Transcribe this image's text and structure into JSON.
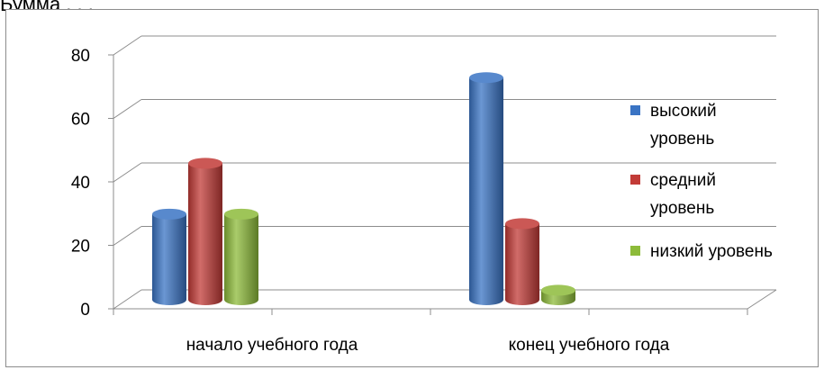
{
  "fragment_text": "Бумма . . .",
  "chart_data": {
    "type": "bar",
    "categories": [
      "начало учебного года",
      "конец учебного года"
    ],
    "series": [
      {
        "name": "высокий уровень",
        "values": [
          27,
          70
        ],
        "color": "#3a74c4"
      },
      {
        "name": "средний уровень",
        "values": [
          43,
          24
        ],
        "color": "#c23b37"
      },
      {
        "name": "низкий уровень",
        "values": [
          27,
          3
        ],
        "color": "#8dbb3a"
      }
    ],
    "y_ticks": [
      "0",
      "20",
      "40",
      "60",
      "80"
    ],
    "ylim": [
      0,
      80
    ],
    "grid": true,
    "legend_position": "right",
    "legend_lines": [
      [
        "высокий",
        "уровень"
      ],
      [
        "средний",
        "уровень"
      ],
      [
        "низкий уровень"
      ]
    ],
    "style": "3d-cylinder"
  }
}
